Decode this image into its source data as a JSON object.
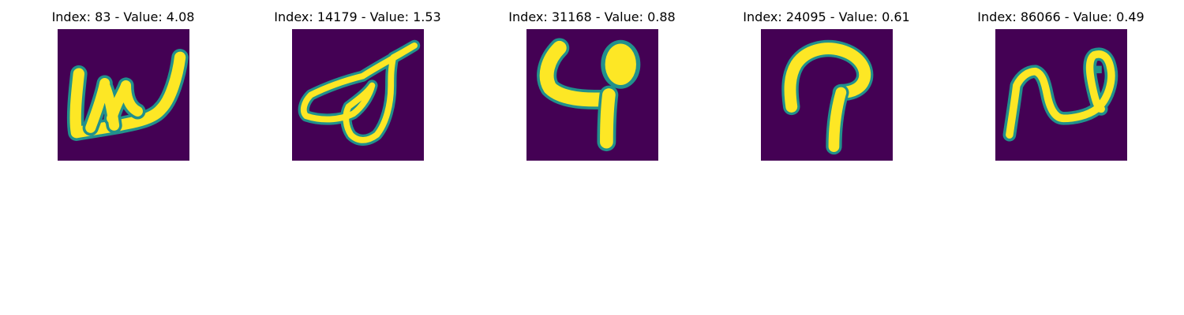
{
  "colors": {
    "background": "#440154",
    "stroke_core": "#fde725",
    "stroke_edge": "#21918c"
  },
  "panels": [
    {
      "title": "Index: 83 - Value: 4.08"
    },
    {
      "title": "Index: 14179 - Value: 1.53"
    },
    {
      "title": "Index: 31168 - Value: 0.88"
    },
    {
      "title": "Index: 24095 - Value: 0.61"
    },
    {
      "title": "Index: 86066 - Value: 0.49"
    }
  ]
}
